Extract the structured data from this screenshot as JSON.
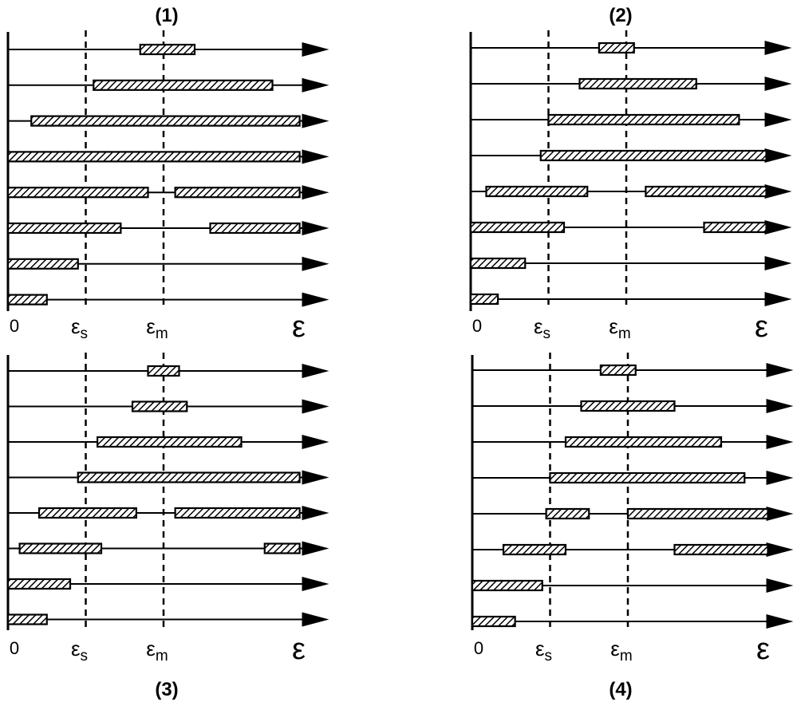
{
  "figure": {
    "colors": {
      "ink": "#000000",
      "background": "#ffffff"
    },
    "epsilon_symbol": "ε",
    "axis_labels": {
      "zero": "0",
      "eps": "ε",
      "sub_s": "s",
      "sub_m": "m"
    },
    "axis_marks": {
      "eps_s": 1.0,
      "eps_m": 2.0,
      "arrow_end": 3.8
    },
    "panels": [
      {
        "title": "(1)",
        "rows": [
          [
            [
              1.7,
              2.4
            ]
          ],
          [
            [
              1.1,
              3.4
            ]
          ],
          [
            [
              0.3,
              3.75
            ]
          ],
          [
            [
              0.0,
              3.75
            ]
          ],
          [
            [
              0.0,
              1.8
            ],
            [
              2.15,
              3.75
            ]
          ],
          [
            [
              0.0,
              1.45
            ],
            [
              2.6,
              3.75
            ]
          ],
          [
            [
              0.0,
              0.9
            ]
          ],
          [
            [
              0.0,
              0.5
            ]
          ]
        ]
      },
      {
        "title": "(2)",
        "rows": [
          [
            [
              1.65,
              2.1
            ]
          ],
          [
            [
              1.4,
              2.9
            ]
          ],
          [
            [
              1.0,
              3.45
            ]
          ],
          [
            [
              0.9,
              3.8
            ]
          ],
          [
            [
              0.2,
              1.5
            ],
            [
              2.25,
              3.8
            ]
          ],
          [
            [
              0.0,
              1.2
            ],
            [
              3.0,
              3.8
            ]
          ],
          [
            [
              0.0,
              0.7
            ]
          ],
          [
            [
              0.0,
              0.35
            ]
          ]
        ]
      },
      {
        "title": "(3)",
        "rows": [
          [
            [
              1.8,
              2.2
            ]
          ],
          [
            [
              1.6,
              2.3
            ]
          ],
          [
            [
              1.15,
              3.0
            ]
          ],
          [
            [
              0.9,
              3.75
            ]
          ],
          [
            [
              0.4,
              1.65
            ],
            [
              2.15,
              3.75
            ]
          ],
          [
            [
              0.15,
              1.2
            ],
            [
              3.3,
              3.75
            ]
          ],
          [
            [
              0.0,
              0.8
            ]
          ],
          [
            [
              0.0,
              0.5
            ]
          ]
        ]
      },
      {
        "title": "(4)",
        "rows": [
          [
            [
              1.65,
              2.1
            ]
          ],
          [
            [
              1.4,
              2.6
            ]
          ],
          [
            [
              1.2,
              3.2
            ]
          ],
          [
            [
              1.0,
              3.5
            ]
          ],
          [
            [
              0.95,
              1.5
            ],
            [
              2.0,
              3.8
            ]
          ],
          [
            [
              0.4,
              1.2
            ],
            [
              2.6,
              3.8
            ]
          ],
          [
            [
              0.0,
              0.9
            ]
          ],
          [
            [
              0.0,
              0.55
            ]
          ]
        ]
      }
    ]
  }
}
